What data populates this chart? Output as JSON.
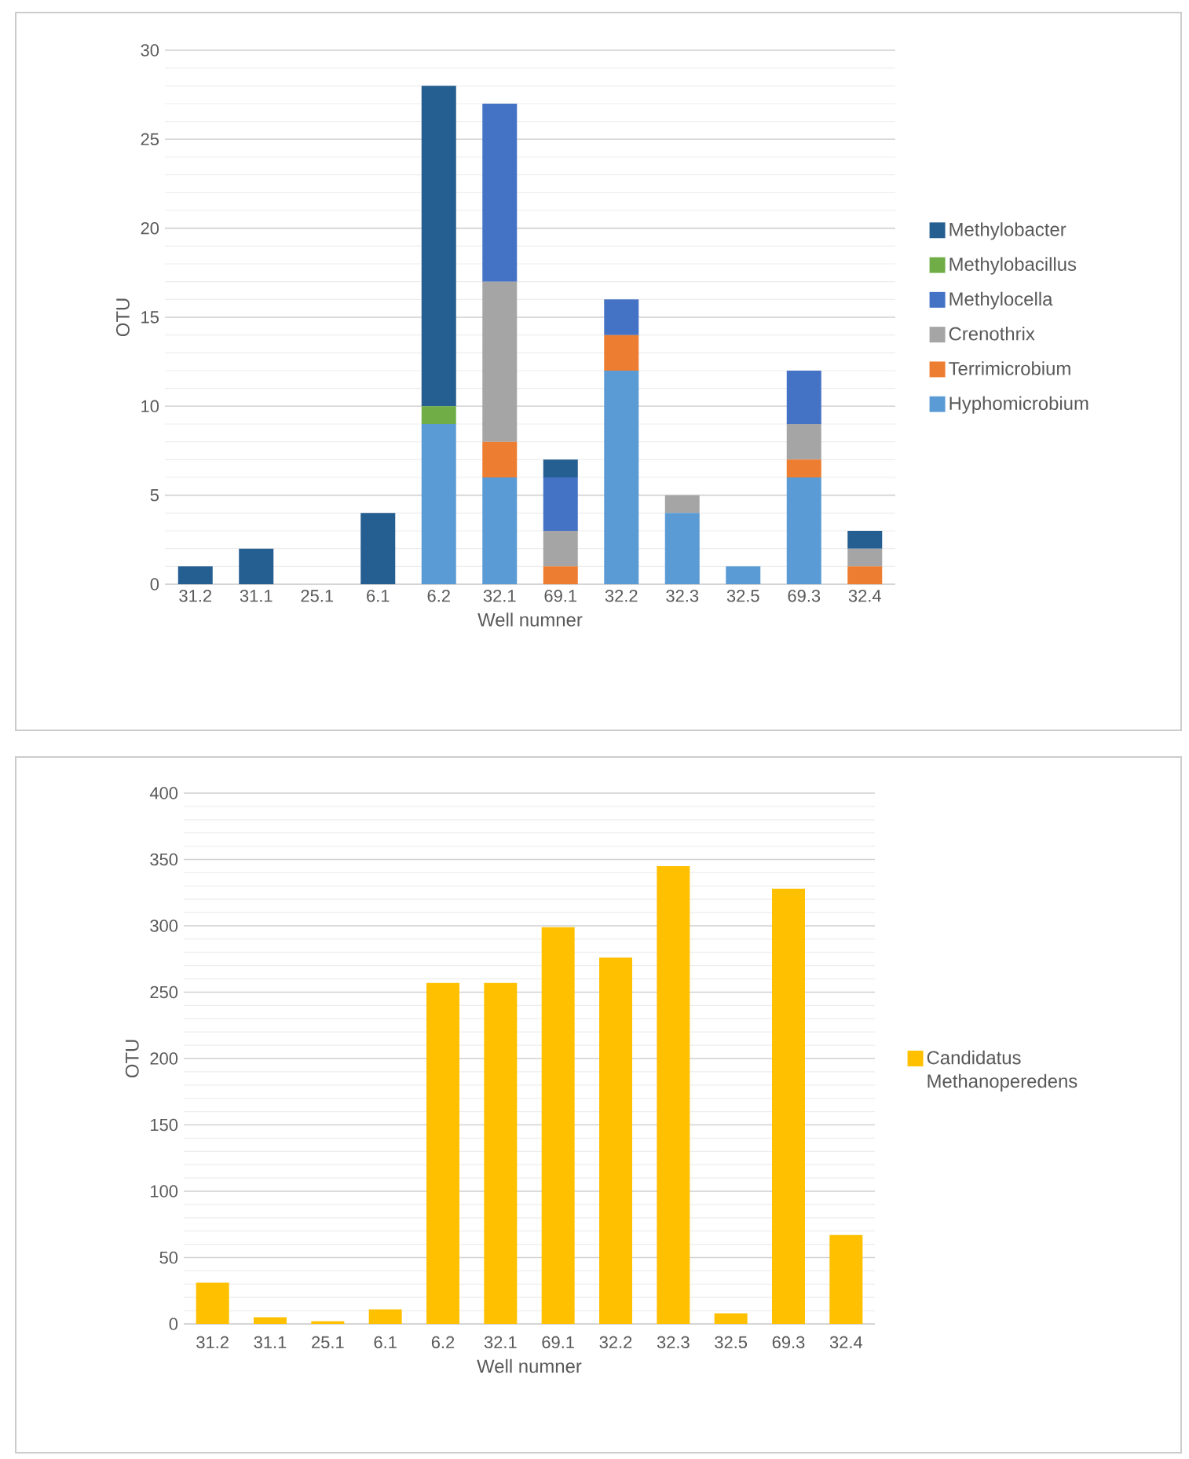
{
  "chart_data": [
    {
      "type": "bar",
      "stacked": true,
      "xlabel": "Well numner",
      "ylabel": "OTU",
      "categories": [
        "31.2",
        "31.1",
        "25.1",
        "6.1",
        "6.2",
        "32.1",
        "69.1",
        "32.2",
        "32.3",
        "32.5",
        "69.3",
        "32.4"
      ],
      "series": [
        {
          "name": "Hyphomicrobium",
          "color": "#5b9bd5",
          "values": [
            0,
            0,
            0,
            0,
            9,
            6,
            0,
            12,
            4,
            1,
            6,
            0
          ]
        },
        {
          "name": "Terrimicrobium",
          "color": "#ed7d31",
          "values": [
            0,
            0,
            0,
            0,
            0,
            2,
            1,
            2,
            0,
            0,
            1,
            1
          ]
        },
        {
          "name": "Crenothrix",
          "color": "#a5a5a5",
          "values": [
            0,
            0,
            0,
            0,
            0,
            9,
            2,
            0,
            1,
            0,
            2,
            1
          ]
        },
        {
          "name": "Methylocella",
          "color": "#4472c4",
          "values": [
            0,
            0,
            0,
            0,
            0,
            10,
            3,
            2,
            0,
            0,
            3,
            0
          ]
        },
        {
          "name": "Methylobacillus",
          "color": "#70ad47",
          "values": [
            0,
            0,
            0,
            0,
            1,
            0,
            0,
            0,
            0,
            0,
            0,
            0
          ]
        },
        {
          "name": "Methylobacter",
          "color": "#255e91",
          "values": [
            1,
            2,
            0,
            4,
            18,
            0,
            1,
            0,
            0,
            0,
            0,
            1
          ]
        }
      ],
      "ylim": [
        0,
        30
      ],
      "yticks": [
        0,
        5,
        10,
        15,
        20,
        25,
        30
      ],
      "grid": "y",
      "legend": "right"
    },
    {
      "type": "bar",
      "xlabel": "Well numner",
      "ylabel": "OTU",
      "categories": [
        "31.2",
        "31.1",
        "25.1",
        "6.1",
        "6.2",
        "32.1",
        "69.1",
        "32.2",
        "32.3",
        "32.5",
        "69.3",
        "32.4"
      ],
      "series": [
        {
          "name": "Candidatus Methanoperedens",
          "color": "#ffc000",
          "values": [
            31,
            5,
            2,
            11,
            257,
            257,
            299,
            276,
            345,
            8,
            328,
            67
          ]
        }
      ],
      "ylim": [
        0,
        400
      ],
      "yticks": [
        0,
        50,
        100,
        150,
        200,
        250,
        300,
        350,
        400
      ],
      "grid": "y",
      "legend": "right"
    }
  ]
}
